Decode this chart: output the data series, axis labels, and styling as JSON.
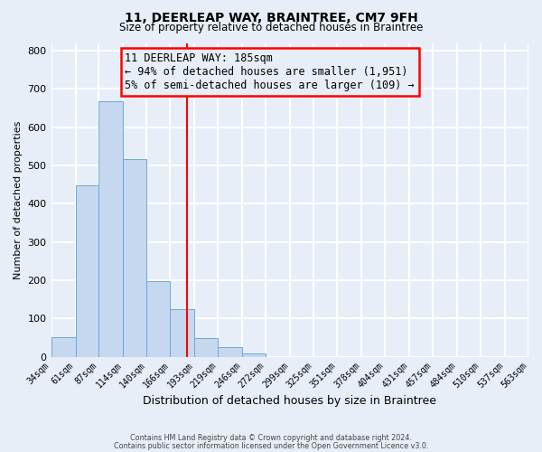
{
  "title1": "11, DEERLEAP WAY, BRAINTREE, CM7 9FH",
  "title2": "Size of property relative to detached houses in Braintree",
  "xlabel": "Distribution of detached houses by size in Braintree",
  "ylabel": "Number of detached properties",
  "bin_edges": [
    34,
    61,
    87,
    114,
    140,
    166,
    193,
    219,
    246,
    272,
    299,
    325,
    351,
    378,
    404,
    431,
    457,
    484,
    510,
    537,
    563
  ],
  "bar_heights": [
    50,
    447,
    667,
    516,
    197,
    125,
    48,
    25,
    8,
    0,
    0,
    0,
    0,
    0,
    0,
    0,
    0,
    0,
    0,
    0
  ],
  "bar_color": "#c5d8f0",
  "bar_edge_color": "#6aaad4",
  "property_line_x": 185,
  "property_line_color": "red",
  "annotation_line1": "11 DEERLEAP WAY: 185sqm",
  "annotation_line2": "← 94% of detached houses are smaller (1,951)",
  "annotation_line3": "5% of semi-detached houses are larger (109) →",
  "annotation_box_color": "red",
  "ylim": [
    0,
    820
  ],
  "yticks": [
    0,
    100,
    200,
    300,
    400,
    500,
    600,
    700,
    800
  ],
  "background_color": "#e8eef8",
  "grid_color": "white",
  "footnote1": "Contains HM Land Registry data © Crown copyright and database right 2024.",
  "footnote2": "Contains public sector information licensed under the Open Government Licence v3.0."
}
